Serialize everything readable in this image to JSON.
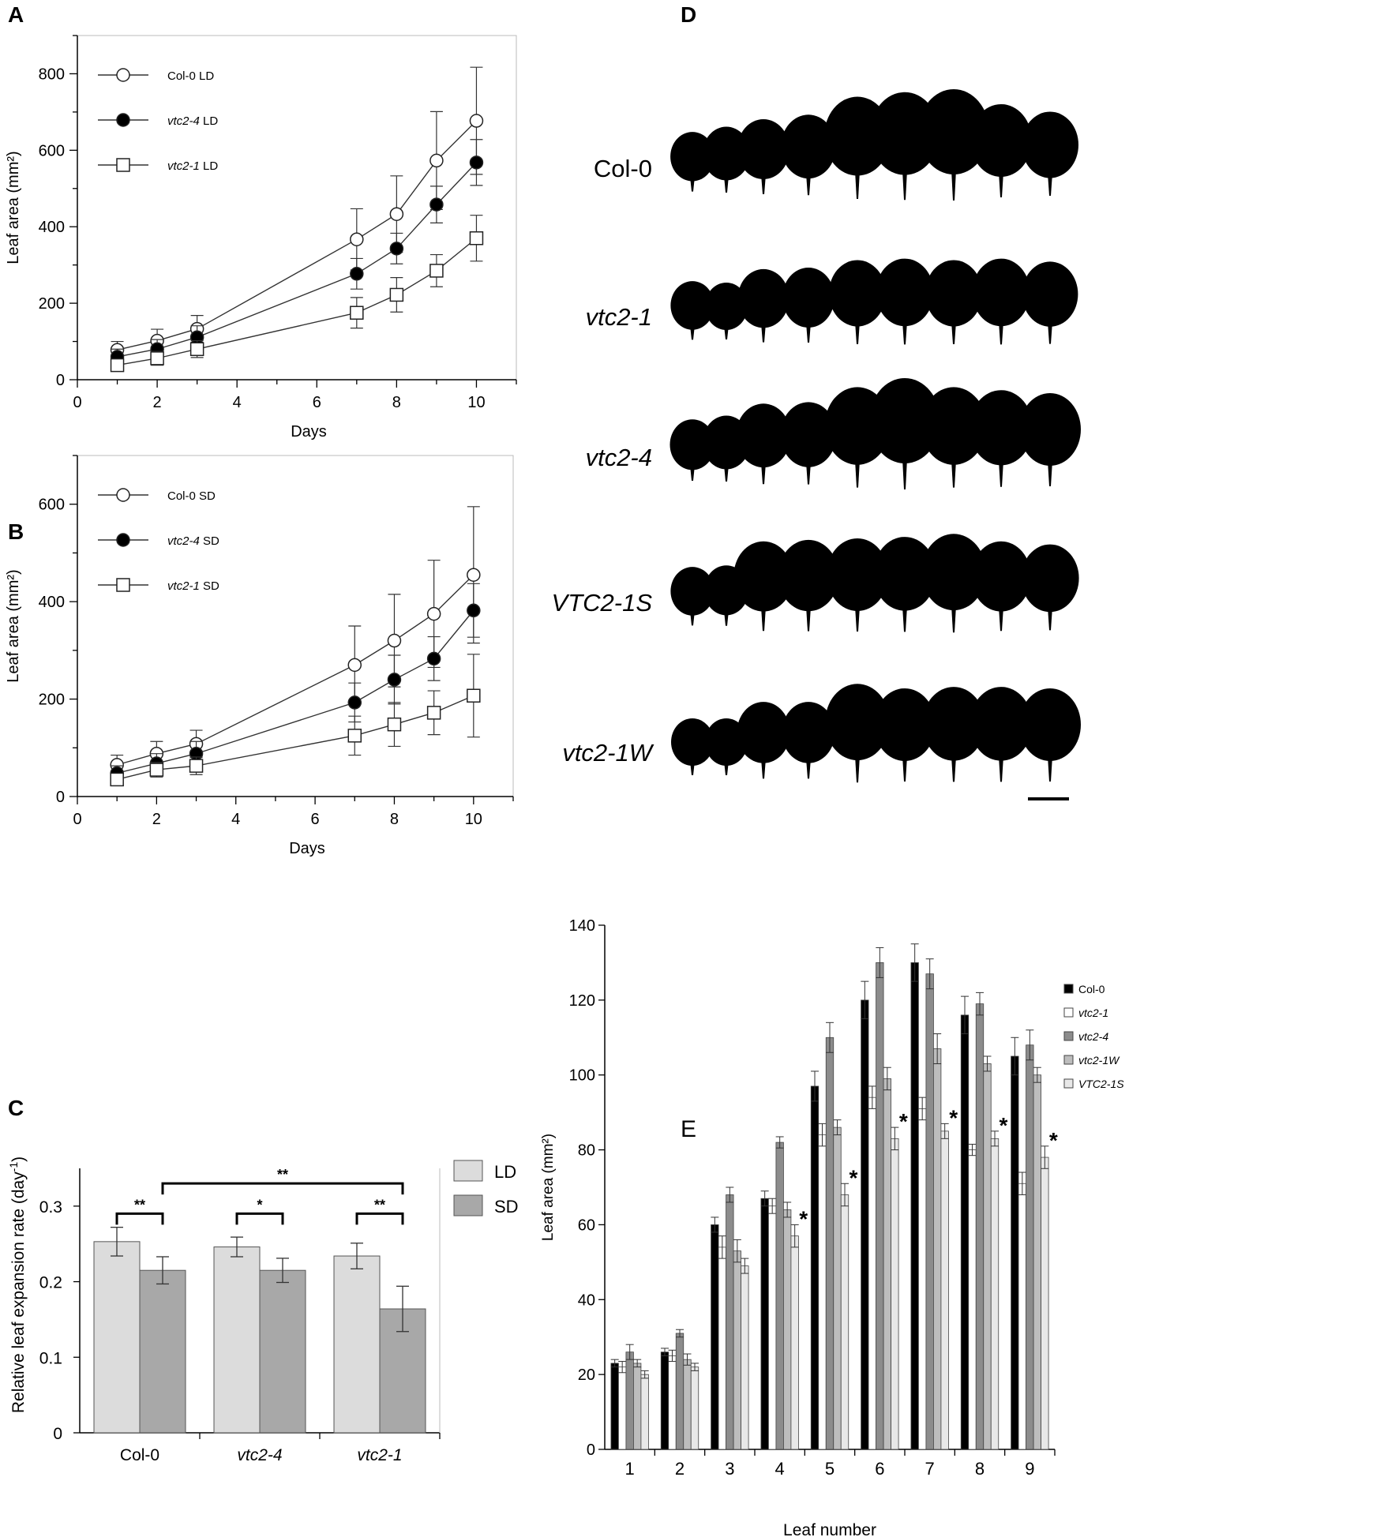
{
  "chart_data": [
    {
      "panel": "A",
      "type": "line",
      "xlabel": "Days",
      "ylabel": "Leaf area (mm²)",
      "xlim": [
        0,
        11
      ],
      "ylim": [
        0,
        900
      ],
      "xticks": [
        0,
        2,
        4,
        6,
        8,
        10
      ],
      "yticks": [
        0,
        200,
        400,
        600,
        800
      ],
      "x": [
        1,
        2,
        3,
        7,
        8,
        9,
        10
      ],
      "series": [
        {
          "name": "Col-0",
          "label_suffix": " LD",
          "italic": false,
          "marker": "open-circle",
          "values": [
            78,
            102,
            133,
            367,
            433,
            573,
            677
          ],
          "errors": [
            22,
            30,
            35,
            80,
            100,
            128,
            140
          ]
        },
        {
          "name": "vtc2-4",
          "label_suffix": " LD",
          "italic": true,
          "marker": "filled-circle",
          "values": [
            60,
            80,
            111,
            277,
            343,
            458,
            568
          ],
          "errors": [
            20,
            25,
            30,
            40,
            40,
            48,
            60
          ]
        },
        {
          "name": "vtc2-1",
          "label_suffix": " LD",
          "italic": true,
          "marker": "open-square",
          "values": [
            38,
            56,
            80,
            175,
            222,
            285,
            370
          ],
          "errors": [
            15,
            18,
            22,
            40,
            45,
            42,
            60
          ]
        }
      ]
    },
    {
      "panel": "B",
      "type": "line",
      "xlabel": "Days",
      "ylabel": "Leaf area (mm²)",
      "xlim": [
        0,
        11
      ],
      "ylim": [
        0,
        700
      ],
      "xticks": [
        0,
        2,
        4,
        6,
        8,
        10
      ],
      "yticks": [
        0,
        200,
        400,
        600
      ],
      "x": [
        1,
        2,
        3,
        7,
        8,
        9,
        10
      ],
      "series": [
        {
          "name": "Col-0",
          "label_suffix": " SD",
          "italic": false,
          "marker": "open-circle",
          "values": [
            65,
            88,
            108,
            270,
            320,
            375,
            455
          ],
          "errors": [
            20,
            25,
            28,
            80,
            95,
            110,
            140
          ]
        },
        {
          "name": "vtc2-4",
          "label_suffix": " SD",
          "italic": true,
          "marker": "filled-circle",
          "values": [
            48,
            68,
            88,
            193,
            240,
            283,
            382
          ],
          "errors": [
            15,
            20,
            25,
            40,
            50,
            45,
            55
          ]
        },
        {
          "name": "vtc2-1",
          "label_suffix": " SD",
          "italic": true,
          "marker": "open-square",
          "values": [
            35,
            55,
            63,
            125,
            148,
            172,
            207
          ],
          "errors": [
            12,
            15,
            18,
            40,
            45,
            45,
            85
          ]
        }
      ]
    },
    {
      "panel": "C",
      "type": "bar",
      "ylabel": "Relative leaf expansion rate (day",
      "ylabel_sup": "-1",
      "ylabel_close": ")",
      "ylim": [
        0,
        0.35
      ],
      "yticks": [
        0,
        0.1,
        0.2,
        0.3
      ],
      "ytick_labels": [
        "0",
        "0.1",
        "0.2",
        "0.3"
      ],
      "categories": [
        {
          "label": "Col-0",
          "italic": false
        },
        {
          "label": "vtc2-4",
          "italic": true
        },
        {
          "label": "vtc2-1",
          "italic": true
        }
      ],
      "series": [
        {
          "name": "LD",
          "color": "#dcdcdc",
          "values": [
            0.253,
            0.246,
            0.234
          ],
          "errors": [
            0.019,
            0.013,
            0.017
          ]
        },
        {
          "name": "SD",
          "color": "#a8a8a8",
          "values": [
            0.215,
            0.215,
            0.164
          ],
          "errors": [
            0.018,
            0.016,
            0.03
          ]
        }
      ],
      "significance": [
        {
          "label": "**",
          "from": [
            0,
            0
          ],
          "to": [
            0,
            1
          ],
          "y": 0.29
        },
        {
          "label": "*",
          "from": [
            1,
            0
          ],
          "to": [
            1,
            1
          ],
          "y": 0.29
        },
        {
          "label": "**",
          "from": [
            2,
            0
          ],
          "to": [
            2,
            1
          ],
          "y": 0.29
        },
        {
          "label": "**",
          "from": [
            0,
            1
          ],
          "to": [
            2,
            1
          ],
          "y": 0.33
        }
      ]
    },
    {
      "panel": "E",
      "type": "bar",
      "xlabel": "Leaf number",
      "ylabel": "Leaf area (mm²)",
      "ylim": [
        0,
        140
      ],
      "yticks": [
        0,
        20,
        40,
        60,
        80,
        100,
        120,
        140
      ],
      "categories": [
        "1",
        "2",
        "3",
        "4",
        "5",
        "6",
        "7",
        "8",
        "9"
      ],
      "series": [
        {
          "name": "Col-0",
          "color": "#000000",
          "values": [
            23,
            26,
            60,
            67,
            97,
            120,
            130,
            116,
            105
          ],
          "errors": [
            1,
            1,
            2,
            2,
            4,
            5,
            5,
            5,
            5
          ]
        },
        {
          "name": "vtc2-1",
          "color": "#ffffff",
          "values": [
            22,
            25,
            54,
            65,
            84,
            94,
            91,
            80,
            71
          ],
          "errors": [
            1.5,
            1.5,
            3,
            2,
            3,
            3,
            3,
            1.5,
            3
          ]
        },
        {
          "name": "vtc2-4",
          "color": "#8c8c8c",
          "values": [
            26,
            31,
            68,
            82,
            110,
            130,
            127,
            119,
            108
          ],
          "errors": [
            2,
            1,
            2,
            1.5,
            4,
            4,
            4,
            3,
            4
          ]
        },
        {
          "name": "vtc2-1W",
          "color": "#bdbdbd",
          "values": [
            23,
            24,
            53,
            64,
            86,
            99,
            107,
            103,
            100
          ],
          "errors": [
            1,
            1.5,
            3,
            2,
            2,
            3,
            4,
            2,
            2
          ]
        },
        {
          "name": "VTC2-1S",
          "color": "#e8e8e8",
          "values": [
            20,
            22,
            49,
            57,
            68,
            83,
            85,
            83,
            78
          ],
          "errors": [
            1,
            1,
            2,
            3,
            3,
            3,
            2,
            2,
            3
          ]
        }
      ],
      "significance_marks": [
        {
          "leaf_index": 3,
          "label": "*"
        },
        {
          "leaf_index": 4,
          "label": "*"
        },
        {
          "leaf_index": 5,
          "label": "*"
        },
        {
          "leaf_index": 6,
          "label": "*"
        },
        {
          "leaf_index": 7,
          "label": "*"
        },
        {
          "leaf_index": 8,
          "label": "*"
        }
      ]
    }
  ],
  "panel_labels": {
    "a": "A",
    "b": "B",
    "c": "C",
    "d": "D",
    "e": "E"
  },
  "leaf_panel": {
    "rows": [
      {
        "label": "Col-0",
        "italic": false
      },
      {
        "label": "vtc2-1",
        "italic": true
      },
      {
        "label": "vtc2-4",
        "italic": true
      },
      {
        "label": "VTC2-1S",
        "italic": true
      },
      {
        "label": "vtc2-1W",
        "italic": true
      }
    ],
    "leaf_sizes": [
      [
        0.33,
        0.4,
        0.5,
        0.56,
        0.8,
        0.86,
        0.9,
        0.7,
        0.6
      ],
      [
        0.32,
        0.3,
        0.48,
        0.5,
        0.6,
        0.62,
        0.6,
        0.62,
        0.58
      ],
      [
        0.35,
        0.4,
        0.56,
        0.58,
        0.78,
        0.9,
        0.78,
        0.74,
        0.7
      ],
      [
        0.32,
        0.34,
        0.66,
        0.68,
        0.7,
        0.72,
        0.76,
        0.66,
        0.62
      ],
      [
        0.3,
        0.3,
        0.52,
        0.52,
        0.76,
        0.7,
        0.72,
        0.72,
        0.7
      ]
    ],
    "colors": {
      "leaf": "#000000"
    }
  }
}
